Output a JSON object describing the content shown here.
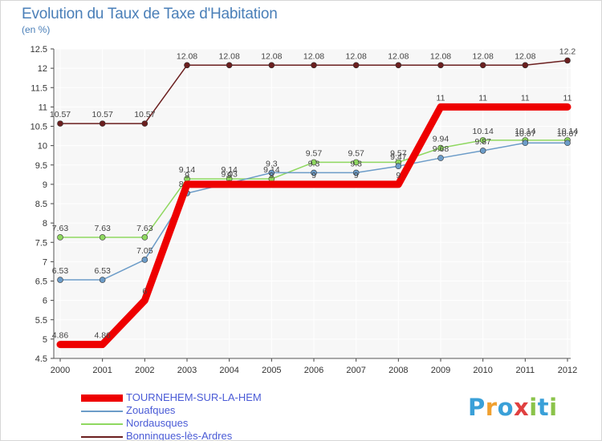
{
  "header": {
    "title": "Evolution du Taux de Taxe d'Habitation",
    "unit": "(en %)"
  },
  "brand": {
    "letters": [
      "P",
      "r",
      "o",
      "x",
      "i",
      "t",
      "i"
    ],
    "colors": [
      "#3aa0d8",
      "#f0a030",
      "#3aa0d8",
      "#e04040",
      "#8bc34a",
      "#3aa0d8",
      "#8bc34a"
    ]
  },
  "chart_data": {
    "type": "line",
    "title": "Evolution du Taux de Taxe d'Habitation",
    "ylabel": "(en %)",
    "xlabel": "",
    "ylim": [
      4.5,
      12.5
    ],
    "yticks": [
      "4.5",
      "5",
      "5.5",
      "6",
      "6.5",
      "7",
      "7.5",
      "8",
      "8.5",
      "9",
      "9.5",
      "10",
      "10.5",
      "11",
      "11.5",
      "12",
      "12.5"
    ],
    "x": [
      "2000",
      "2001",
      "2002",
      "2003",
      "2004",
      "2005",
      "2006",
      "2007",
      "2008",
      "2009",
      "2010",
      "2011",
      "2012"
    ],
    "grid": true,
    "legend_position": "bottom-left",
    "series": [
      {
        "name": "Bonningues-lès-Ardres",
        "color": "#6b1f1f",
        "values": [
          10.57,
          10.57,
          10.57,
          12.08,
          12.08,
          12.08,
          12.08,
          12.08,
          12.08,
          12.08,
          12.08,
          12.08,
          12.2
        ],
        "labels": [
          "10.57",
          "10.57",
          "10.57",
          "12.08",
          "12.08",
          "12.08",
          "12.08",
          "12.08",
          "12.08",
          "12.08",
          "12.08",
          "12.08",
          "12.2"
        ]
      },
      {
        "name": "Nordausques",
        "color": "#8fd860",
        "values": [
          7.63,
          7.63,
          7.63,
          9.14,
          9.14,
          9.14,
          9.57,
          9.57,
          9.57,
          9.94,
          10.14,
          10.14,
          10.14
        ],
        "labels": [
          "7.63",
          "7.63",
          "7.63",
          "9.14",
          "9.14",
          "9.14",
          "9.57",
          "9.57",
          "9.57",
          "9.94",
          "10.14",
          "10.14",
          "10.14"
        ]
      },
      {
        "name": "Zouafques",
        "color": "#6c9cc8",
        "values": [
          6.53,
          6.53,
          7.05,
          8.77,
          9.03,
          9.3,
          9.3,
          9.3,
          9.47,
          9.68,
          9.87,
          10.07,
          10.07
        ],
        "labels": [
          "6.53",
          "6.53",
          "7.05",
          "8.77",
          "9.03",
          "9.3",
          "9.3",
          "9.3",
          "9.47",
          "9.68",
          "9.87",
          "10.07",
          "10.07"
        ]
      },
      {
        "name": "TOURNEHEM-SUR-LA-HEM",
        "color": "#ee0000",
        "values": [
          4.86,
          4.86,
          6,
          9,
          9,
          9,
          9,
          9,
          9,
          11,
          11,
          11,
          11
        ],
        "labels": [
          "4.86",
          "4.86",
          "6",
          "9",
          "9",
          "9",
          "9",
          "9",
          "9",
          "11",
          "11",
          "11",
          "11"
        ]
      }
    ],
    "legend_order": [
      "TOURNEHEM-SUR-LA-HEM",
      "Zouafques",
      "Nordausques",
      "Bonningues-lès-Ardres"
    ]
  }
}
